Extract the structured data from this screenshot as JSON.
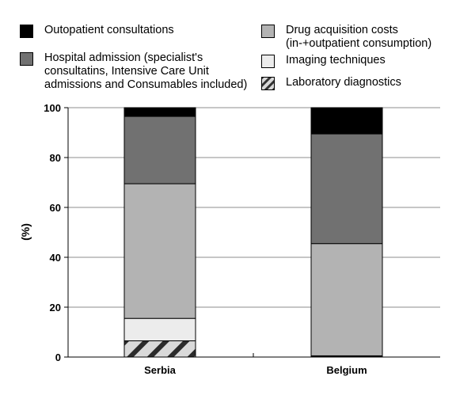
{
  "chart_data": {
    "type": "bar",
    "stacked": true,
    "title": "",
    "xlabel": "",
    "ylabel": "(%)",
    "ylim": [
      0,
      100
    ],
    "yticks": [
      0,
      20,
      40,
      60,
      80,
      100
    ],
    "grid": true,
    "legend_position": "top",
    "categories": [
      "Serbia",
      "Belgium"
    ],
    "series": [
      {
        "name": "Laboratory diagnostics",
        "values": [
          6.5,
          0.3
        ],
        "color": "#d9d9d9",
        "pattern": "hatch"
      },
      {
        "name": "Imaging techniques",
        "values": [
          9.0,
          0.2
        ],
        "color": "#ececec"
      },
      {
        "name": "Drug acquisition costs\n(in-+outpatient consumption)",
        "values": [
          54.0,
          45.0
        ],
        "color": "#b3b3b3"
      },
      {
        "name": "Hospital admission (specialist's\nconsultatins, Intensive Care Unit\nadmissions and Consumables included)",
        "values": [
          27.0,
          44.0
        ],
        "color": "#717171"
      },
      {
        "name": "Outopatient consultations",
        "values": [
          3.5,
          10.5
        ],
        "color": "#000000"
      }
    ]
  }
}
